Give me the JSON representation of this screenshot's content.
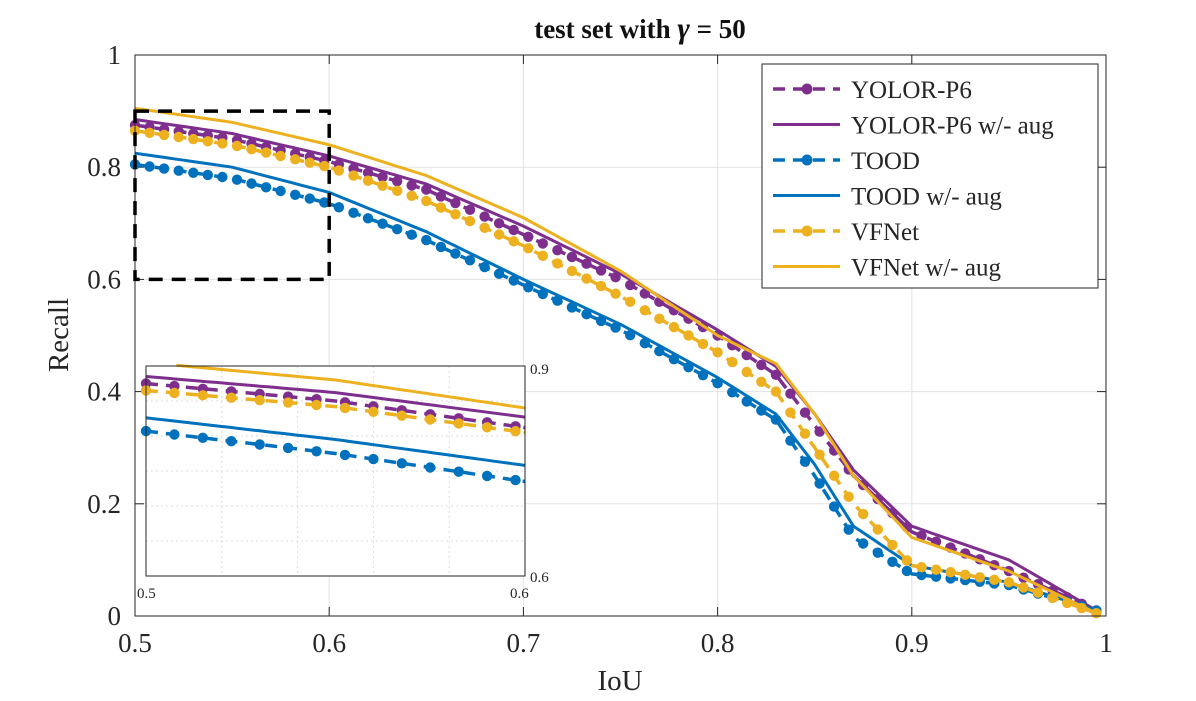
{
  "chart_data": {
    "type": "line",
    "title": "test set with γ = 50",
    "title_prefix": "test set with",
    "title_symbol": "γ",
    "title_suffix": "= 50",
    "xlabel": "IoU",
    "ylabel": "Recall",
    "xlim": [
      0.5,
      1
    ],
    "ylim": [
      0,
      1
    ],
    "xticks": [
      0.5,
      0.6,
      0.7,
      0.8,
      0.9,
      1
    ],
    "xtick_labels": [
      "0.5",
      "0.6",
      "0.7",
      "0.8",
      "0.9",
      "1"
    ],
    "yticks": [
      0,
      0.2,
      0.4,
      0.6,
      0.8,
      1
    ],
    "ytick_labels": [
      "0",
      "0.2",
      "0.4",
      "0.6",
      "0.8",
      "1"
    ],
    "grid": true,
    "legend_position": "top-right",
    "x": [
      0.5,
      0.55,
      0.6,
      0.65,
      0.7,
      0.75,
      0.8,
      0.83,
      0.85,
      0.87,
      0.9,
      0.95,
      0.995
    ],
    "series": [
      {
        "name": "YOLOR-P6",
        "color": "#7E2F8E",
        "style": "dashed-dots",
        "values": [
          0.875,
          0.85,
          0.81,
          0.76,
          0.68,
          0.6,
          0.5,
          0.43,
          0.34,
          0.25,
          0.15,
          0.08,
          0.01
        ]
      },
      {
        "name": "YOLOR-P6 w/- aug",
        "color": "#7E2F8E",
        "style": "solid",
        "values": [
          0.885,
          0.86,
          0.82,
          0.77,
          0.695,
          0.61,
          0.51,
          0.445,
          0.36,
          0.26,
          0.16,
          0.1,
          0.01
        ]
      },
      {
        "name": "TOOD",
        "color": "#0072BD",
        "style": "dashed-dots",
        "values": [
          0.805,
          0.78,
          0.735,
          0.67,
          0.59,
          0.51,
          0.415,
          0.35,
          0.25,
          0.14,
          0.075,
          0.055,
          0.01
        ]
      },
      {
        "name": "TOOD w/- aug",
        "color": "#0072BD",
        "style": "solid",
        "values": [
          0.825,
          0.8,
          0.755,
          0.685,
          0.6,
          0.52,
          0.425,
          0.36,
          0.27,
          0.16,
          0.09,
          0.06,
          0.01
        ]
      },
      {
        "name": "VFNet",
        "color": "#EDB120",
        "style": "dashed-dots",
        "values": [
          0.865,
          0.84,
          0.8,
          0.74,
          0.66,
          0.57,
          0.47,
          0.4,
          0.3,
          0.2,
          0.09,
          0.06,
          0.005
        ]
      },
      {
        "name": "VFNet w/- aug",
        "color": "#EDB120",
        "style": "solid",
        "values": [
          0.905,
          0.88,
          0.84,
          0.785,
          0.71,
          0.615,
          0.5,
          0.45,
          0.36,
          0.25,
          0.14,
          0.08,
          0.005
        ]
      }
    ],
    "highlight_box": {
      "xlim": [
        0.5,
        0.6
      ],
      "ylim": [
        0.6,
        0.9
      ]
    },
    "inset": {
      "xlim": [
        0.5,
        0.6
      ],
      "ylim": [
        0.6,
        0.9
      ],
      "xtick_labels": [
        "0.5",
        "0.6"
      ],
      "ytick_labels": [
        "0.9",
        "0.6"
      ],
      "x": [
        0.5,
        0.55,
        0.6
      ],
      "series": [
        {
          "name": "YOLOR-P6",
          "values": [
            0.875,
            0.85,
            0.812
          ]
        },
        {
          "name": "YOLOR-P6 w/- aug",
          "values": [
            0.885,
            0.862,
            0.827
          ]
        },
        {
          "name": "TOOD",
          "values": [
            0.807,
            0.775,
            0.735
          ]
        },
        {
          "name": "TOOD w/- aug",
          "values": [
            0.826,
            0.795,
            0.758
          ]
        },
        {
          "name": "VFNet",
          "values": [
            0.865,
            0.842,
            0.805
          ]
        },
        {
          "name": "VFNet w/- aug",
          "values": [
            0.905,
            0.88,
            0.84
          ]
        }
      ]
    }
  }
}
